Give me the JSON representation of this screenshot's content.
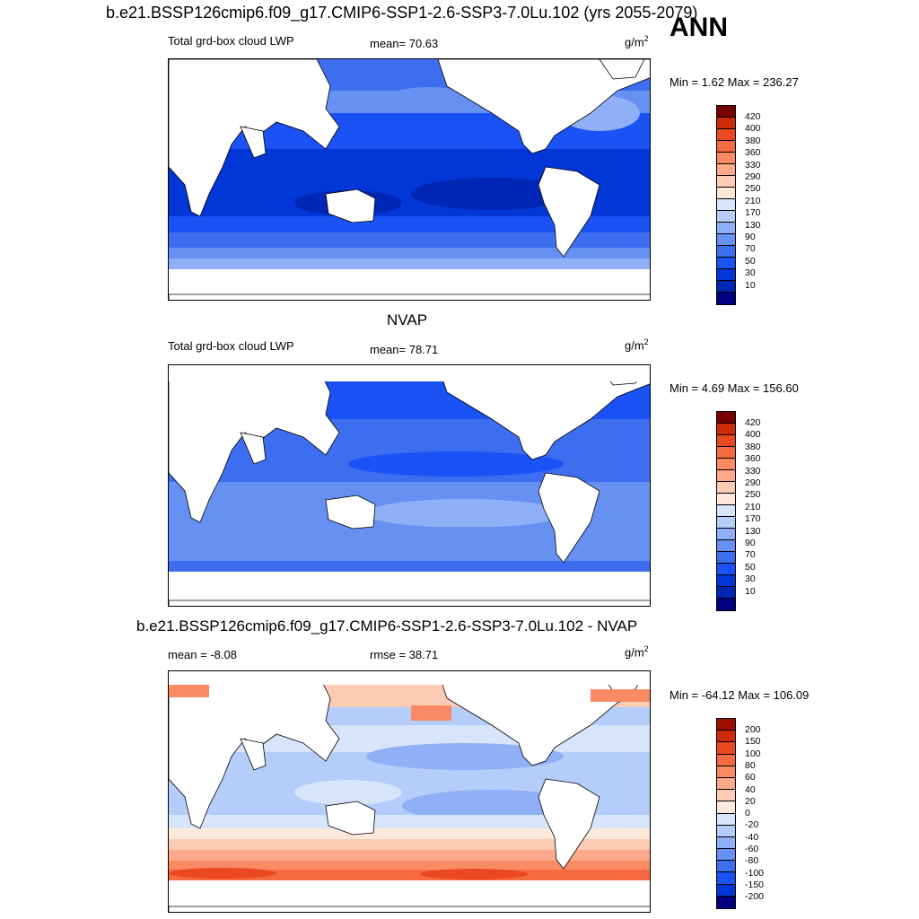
{
  "figure": {
    "title": "b.e21.BSSP126cmip6.f09_g17.CMIP6-SSP1-2.6-SSP3-7.0Lu.102 (yrs 2055-2079)",
    "season": "ANN"
  },
  "panels": [
    {
      "heading": "",
      "left_label": "Total grd-box cloud LWP",
      "center_label": "mean=  70.63",
      "unit": "g/m",
      "unit_sup": "2",
      "minmax": "Min =   1.62 Max = 236.27",
      "colorbar": {
        "colors": [
          "#000080",
          "#0026b5",
          "#0037d6",
          "#1a52f5",
          "#3d6ef0",
          "#6690f2",
          "#8fb0f7",
          "#b5cdfa",
          "#d6e5fb",
          "#fde6d7",
          "#fdcbb4",
          "#fba98a",
          "#f98a64",
          "#f56a40",
          "#ec4820",
          "#cc2a08",
          "#9b0e00",
          "#7a0000"
        ],
        "labels": [
          "10",
          "30",
          "50",
          "70",
          "90",
          "130",
          "170",
          "210",
          "250",
          "290",
          "330",
          "360",
          "380",
          "400",
          "420"
        ]
      }
    },
    {
      "heading": "NVAP",
      "left_label": "Total grd-box cloud LWP",
      "center_label": "mean=  78.71",
      "unit": "g/m",
      "unit_sup": "2",
      "minmax": "Min =   4.69 Max = 156.60",
      "colorbar": {
        "colors": [
          "#000080",
          "#0026b5",
          "#0037d6",
          "#1a52f5",
          "#3d6ef0",
          "#6690f2",
          "#8fb0f7",
          "#b5cdfa",
          "#d6e5fb",
          "#fde6d7",
          "#fdcbb4",
          "#fba98a",
          "#f98a64",
          "#f56a40",
          "#ec4820",
          "#cc2a08",
          "#9b0e00",
          "#7a0000"
        ],
        "labels": [
          "10",
          "30",
          "50",
          "70",
          "90",
          "130",
          "170",
          "210",
          "250",
          "290",
          "330",
          "360",
          "380",
          "400",
          "420"
        ]
      }
    },
    {
      "heading": "b.e21.BSSP126cmip6.f09_g17.CMIP6-SSP1-2.6-SSP3-7.0Lu.102 - NVAP",
      "left_label": "mean =  -8.08",
      "center_label": "rmse =  38.71",
      "unit": "g/m",
      "unit_sup": "2",
      "minmax": "Min = -64.12 Max = 106.09",
      "colorbar": {
        "colors": [
          "#000080",
          "#0026b5",
          "#0037d6",
          "#1a52f5",
          "#3d6ef0",
          "#6690f2",
          "#8fb0f7",
          "#b5cdfa",
          "#d6e5fb",
          "#fde9dc",
          "#fdcbb4",
          "#fba98a",
          "#f98a64",
          "#f56a40",
          "#ec4820",
          "#cc2a08",
          "#9b0e00"
        ],
        "labels": [
          "-200",
          "-150",
          "-100",
          "-80",
          "-60",
          "-40",
          "-20",
          "0",
          "20",
          "40",
          "60",
          "80",
          "100",
          "150",
          "200"
        ]
      }
    }
  ]
}
